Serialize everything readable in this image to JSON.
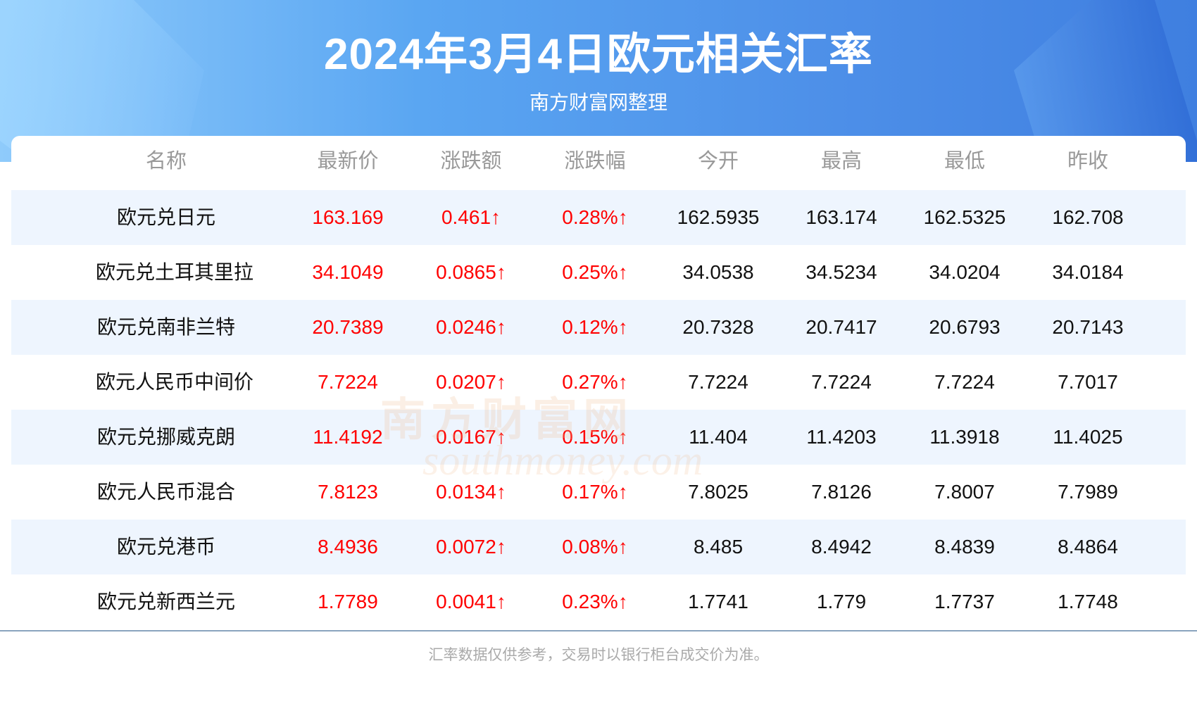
{
  "header": {
    "title": "2024年3月4日欧元相关汇率",
    "subtitle": "南方财富网整理"
  },
  "table": {
    "columns": [
      "名称",
      "最新价",
      "涨跌额",
      "涨跌幅",
      "今开",
      "最高",
      "最低",
      "昨收"
    ],
    "rows": [
      [
        "欧元兑日元",
        "163.169",
        "0.461↑",
        "0.28%↑",
        "162.5935",
        "163.174",
        "162.5325",
        "162.708"
      ],
      [
        "欧元兑土耳其里拉",
        "34.1049",
        "0.0865↑",
        "0.25%↑",
        "34.0538",
        "34.5234",
        "34.0204",
        "34.0184"
      ],
      [
        "欧元兑南非兰特",
        "20.7389",
        "0.0246↑",
        "0.12%↑",
        "20.7328",
        "20.7417",
        "20.6793",
        "20.7143"
      ],
      [
        "欧元人民币中间价",
        "7.7224",
        "0.0207↑",
        "0.27%↑",
        "7.7224",
        "7.7224",
        "7.7224",
        "7.7017"
      ],
      [
        "欧元兑挪威克朗",
        "11.4192",
        "0.0167↑",
        "0.15%↑",
        "11.404",
        "11.4203",
        "11.3918",
        "11.4025"
      ],
      [
        "欧元人民币混合",
        "7.8123",
        "0.0134↑",
        "0.17%↑",
        "7.8025",
        "7.8126",
        "7.8007",
        "7.7989"
      ],
      [
        "欧元兑港币",
        "8.4936",
        "0.0072↑",
        "0.08%↑",
        "8.485",
        "8.4942",
        "8.4839",
        "8.4864"
      ],
      [
        "欧元兑新西兰元",
        "1.7789",
        "0.0041↑",
        "0.23%↑",
        "1.7741",
        "1.779",
        "1.7737",
        "1.7748"
      ]
    ]
  },
  "watermark": {
    "cn": "南方财富网",
    "en": "southmoney.com"
  },
  "footer": {
    "note": "汇率数据仅供参考，交易时以银行柜台成交价为准。"
  },
  "colors": {
    "up": "#ff0000",
    "alt_row": "#eef5fe",
    "banner": "#4d8fe8"
  }
}
